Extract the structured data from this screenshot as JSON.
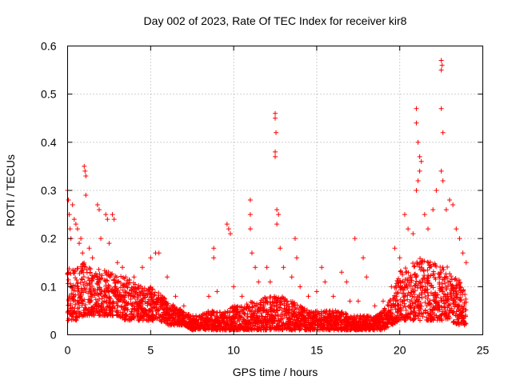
{
  "chart_data": {
    "type": "scatter",
    "title": "Day 002 of 2023, Rate Of TEC Index for receiver kir8",
    "xlabel": "GPS time / hours",
    "ylabel": "ROTI / TECUs",
    "xlim": [
      0,
      25
    ],
    "ylim": [
      0,
      0.6
    ],
    "x_ticks": [
      "0",
      "5",
      "10",
      "15",
      "20",
      "25"
    ],
    "y_ticks": [
      "0",
      "0.1",
      "0.2",
      "0.3",
      "0.4",
      "0.5",
      "0.6"
    ],
    "grid": true,
    "marker": "plus",
    "color": "#ff0000",
    "series": [
      {
        "points": [
          [
            0.0,
            0.3
          ],
          [
            0.05,
            0.28
          ],
          [
            0.1,
            0.25
          ],
          [
            0.15,
            0.22
          ],
          [
            0.2,
            0.2
          ],
          [
            0.3,
            0.27
          ],
          [
            0.4,
            0.24
          ],
          [
            0.5,
            0.23
          ],
          [
            0.6,
            0.22
          ],
          [
            0.7,
            0.19
          ],
          [
            0.8,
            0.2
          ],
          [
            0.9,
            0.17
          ],
          [
            1.0,
            0.35
          ],
          [
            1.05,
            0.34
          ],
          [
            1.1,
            0.33
          ],
          [
            1.1,
            0.29
          ],
          [
            1.3,
            0.18
          ],
          [
            1.5,
            0.16
          ],
          [
            1.8,
            0.27
          ],
          [
            1.9,
            0.26
          ],
          [
            2.0,
            0.2
          ],
          [
            2.3,
            0.25
          ],
          [
            2.4,
            0.24
          ],
          [
            2.5,
            0.19
          ],
          [
            2.7,
            0.25
          ],
          [
            2.8,
            0.24
          ],
          [
            3.0,
            0.15
          ],
          [
            3.3,
            0.14
          ],
          [
            3.5,
            0.12
          ],
          [
            4.0,
            0.12
          ],
          [
            4.5,
            0.14
          ],
          [
            5.0,
            0.16
          ],
          [
            5.3,
            0.17
          ],
          [
            5.5,
            0.17
          ],
          [
            6.0,
            0.12
          ],
          [
            6.5,
            0.08
          ],
          [
            7.0,
            0.06
          ],
          [
            8.5,
            0.08
          ],
          [
            8.8,
            0.18
          ],
          [
            8.8,
            0.16
          ],
          [
            9.0,
            0.09
          ],
          [
            9.6,
            0.23
          ],
          [
            9.7,
            0.22
          ],
          [
            9.8,
            0.21
          ],
          [
            10.0,
            0.1
          ],
          [
            10.5,
            0.08
          ],
          [
            11.0,
            0.28
          ],
          [
            11.0,
            0.25
          ],
          [
            11.0,
            0.22
          ],
          [
            11.1,
            0.17
          ],
          [
            11.3,
            0.14
          ],
          [
            11.5,
            0.11
          ],
          [
            12.0,
            0.14
          ],
          [
            12.2,
            0.11
          ],
          [
            12.5,
            0.46
          ],
          [
            12.5,
            0.45
          ],
          [
            12.55,
            0.42
          ],
          [
            12.5,
            0.38
          ],
          [
            12.5,
            0.37
          ],
          [
            12.6,
            0.26
          ],
          [
            12.7,
            0.25
          ],
          [
            12.6,
            0.23
          ],
          [
            12.8,
            0.18
          ],
          [
            13.0,
            0.14
          ],
          [
            13.5,
            0.12
          ],
          [
            13.7,
            0.2
          ],
          [
            13.8,
            0.16
          ],
          [
            14.0,
            0.1
          ],
          [
            14.5,
            0.08
          ],
          [
            15.0,
            0.09
          ],
          [
            15.3,
            0.14
          ],
          [
            15.5,
            0.11
          ],
          [
            16.0,
            0.08
          ],
          [
            16.5,
            0.13
          ],
          [
            16.8,
            0.11
          ],
          [
            17.0,
            0.07
          ],
          [
            17.3,
            0.2
          ],
          [
            17.5,
            0.07
          ],
          [
            17.8,
            0.16
          ],
          [
            18.0,
            0.12
          ],
          [
            18.5,
            0.06
          ],
          [
            19.0,
            0.07
          ],
          [
            19.5,
            0.1
          ],
          [
            19.7,
            0.18
          ],
          [
            20.0,
            0.16
          ],
          [
            20.3,
            0.25
          ],
          [
            20.5,
            0.22
          ],
          [
            20.8,
            0.21
          ],
          [
            21.0,
            0.47
          ],
          [
            21.0,
            0.44
          ],
          [
            21.1,
            0.4
          ],
          [
            21.2,
            0.37
          ],
          [
            21.3,
            0.36
          ],
          [
            21.2,
            0.34
          ],
          [
            21.1,
            0.32
          ],
          [
            21.0,
            0.3
          ],
          [
            21.5,
            0.25
          ],
          [
            21.7,
            0.22
          ],
          [
            22.0,
            0.26
          ],
          [
            22.2,
            0.3
          ],
          [
            22.5,
            0.57
          ],
          [
            22.55,
            0.56
          ],
          [
            22.5,
            0.55
          ],
          [
            22.5,
            0.47
          ],
          [
            22.6,
            0.42
          ],
          [
            22.5,
            0.34
          ],
          [
            22.6,
            0.32
          ],
          [
            22.8,
            0.26
          ],
          [
            23.0,
            0.28
          ],
          [
            23.2,
            0.27
          ],
          [
            23.4,
            0.22
          ],
          [
            23.6,
            0.2
          ],
          [
            23.8,
            0.17
          ],
          [
            24.0,
            0.15
          ]
        ],
        "dense_band": [
          [
            0.0,
            0.03,
            0.14
          ],
          [
            0.5,
            0.03,
            0.15
          ],
          [
            1.0,
            0.04,
            0.15
          ],
          [
            1.5,
            0.04,
            0.14
          ],
          [
            2.0,
            0.04,
            0.14
          ],
          [
            2.5,
            0.04,
            0.13
          ],
          [
            3.0,
            0.04,
            0.13
          ],
          [
            3.5,
            0.03,
            0.12
          ],
          [
            4.0,
            0.03,
            0.11
          ],
          [
            4.5,
            0.03,
            0.1
          ],
          [
            5.0,
            0.03,
            0.1
          ],
          [
            5.5,
            0.03,
            0.09
          ],
          [
            6.0,
            0.02,
            0.07
          ],
          [
            6.5,
            0.02,
            0.06
          ],
          [
            7.0,
            0.02,
            0.05
          ],
          [
            7.5,
            0.01,
            0.04
          ],
          [
            8.0,
            0.01,
            0.04
          ],
          [
            8.5,
            0.01,
            0.05
          ],
          [
            9.0,
            0.01,
            0.05
          ],
          [
            9.5,
            0.01,
            0.05
          ],
          [
            10.0,
            0.01,
            0.06
          ],
          [
            10.5,
            0.01,
            0.06
          ],
          [
            11.0,
            0.01,
            0.07
          ],
          [
            11.5,
            0.01,
            0.07
          ],
          [
            12.0,
            0.01,
            0.08
          ],
          [
            12.5,
            0.01,
            0.08
          ],
          [
            13.0,
            0.01,
            0.08
          ],
          [
            13.5,
            0.01,
            0.07
          ],
          [
            14.0,
            0.01,
            0.06
          ],
          [
            14.5,
            0.01,
            0.05
          ],
          [
            15.0,
            0.01,
            0.05
          ],
          [
            15.5,
            0.01,
            0.05
          ],
          [
            16.0,
            0.01,
            0.05
          ],
          [
            16.5,
            0.01,
            0.05
          ],
          [
            17.0,
            0.01,
            0.04
          ],
          [
            17.5,
            0.01,
            0.04
          ],
          [
            18.0,
            0.01,
            0.04
          ],
          [
            18.5,
            0.01,
            0.04
          ],
          [
            19.0,
            0.01,
            0.05
          ],
          [
            19.5,
            0.02,
            0.08
          ],
          [
            20.0,
            0.03,
            0.13
          ],
          [
            20.5,
            0.03,
            0.15
          ],
          [
            21.0,
            0.03,
            0.16
          ],
          [
            21.5,
            0.03,
            0.16
          ],
          [
            22.0,
            0.03,
            0.15
          ],
          [
            22.5,
            0.03,
            0.15
          ],
          [
            23.0,
            0.03,
            0.14
          ],
          [
            23.5,
            0.02,
            0.12
          ],
          [
            24.0,
            0.02,
            0.08
          ]
        ]
      }
    ]
  }
}
